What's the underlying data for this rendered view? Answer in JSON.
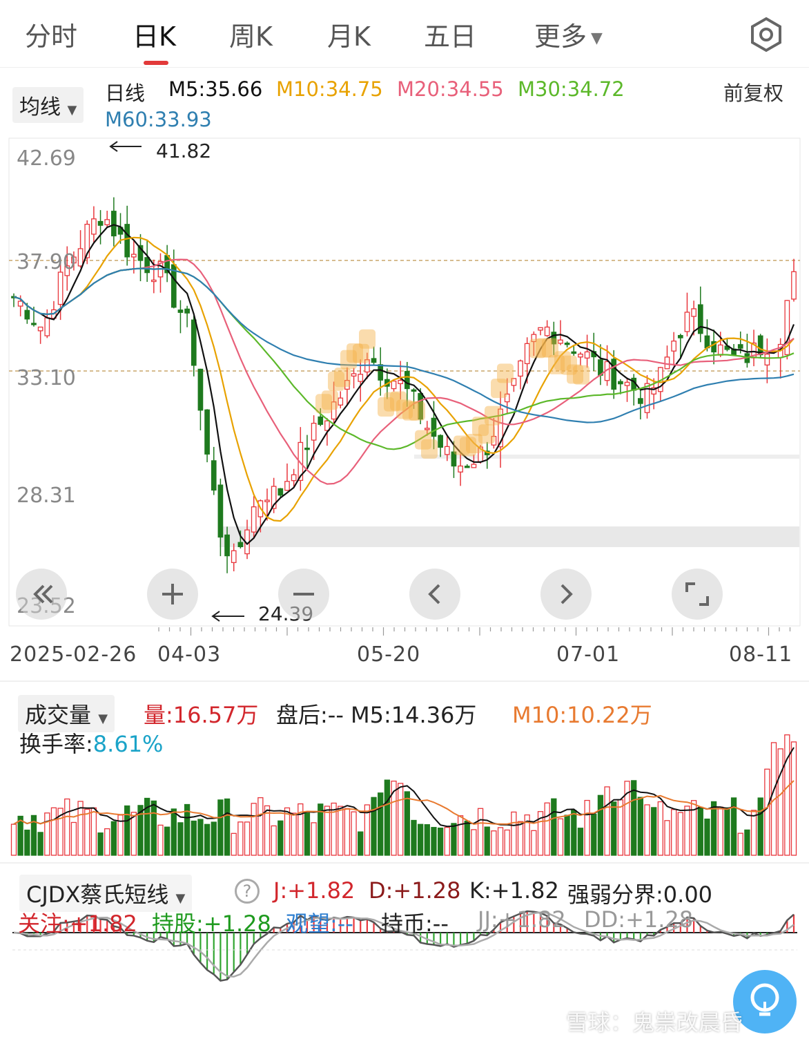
{
  "tabs": [
    {
      "label": "分时"
    },
    {
      "label": "日K"
    },
    {
      "label": "周K"
    },
    {
      "label": "月K"
    },
    {
      "label": "五日"
    },
    {
      "label": "更多"
    }
  ],
  "active_tab": "日K",
  "main_legend": {
    "selector": "均线",
    "period": "日线",
    "m5": "M5:35.66",
    "m10": "M10:34.75",
    "m20": "M20:34.55",
    "m30": "M30:34.72",
    "m60": "M60:33.93",
    "adjust": "前复权"
  },
  "colors": {
    "m5": "#111111",
    "m10": "#e8a200",
    "m20": "#e8607a",
    "m30": "#5cb82a",
    "m60": "#2f7fb0",
    "up": "#e8363c",
    "down": "#1e7a1e",
    "jvalue": "#d2262c"
  },
  "price_axis": [
    "42.69",
    "37.90",
    "33.10",
    "28.31",
    "23.52"
  ],
  "high_label": "41.82",
  "low_label": "24.39",
  "dates": [
    "2025-02-26",
    "04-03",
    "05-20",
    "07-01",
    "08-11"
  ],
  "volume_legend": {
    "selector": "成交量",
    "vol": "量:16.57万",
    "after": "盘后:-- M5:14.36万",
    "m10": "M10:10.22万",
    "turnover_label": "换手率:",
    "turnover_value": "8.61%"
  },
  "cjdx_legend": {
    "selector": "CJDX蔡氏短线",
    "j": "J:+1.82",
    "d": "D:+1.28",
    "k": "K:+1.82",
    "strength": "强弱分界:0.00",
    "watch": "关注:+1.82",
    "hold": "持股:+1.28",
    "observe": "观望:--",
    "coin": "持币:--",
    "jj": "JJ:+1.82",
    "dd": "DD:+1.28"
  },
  "watermark": "雪球：鬼祟改晨昏",
  "chart_data": {
    "type": "candlestick",
    "title": "",
    "price_range": [
      23.52,
      42.69
    ],
    "dashed_levels": [
      37.9,
      33.1
    ],
    "high": 41.82,
    "low": 24.39,
    "moving_averages": {
      "M5": 35.66,
      "M10": 34.75,
      "M20": 34.55,
      "M30": 34.72,
      "M60": 33.93
    },
    "closes_sampled": [
      36.8,
      36.2,
      35.4,
      37.2,
      38.5,
      39.6,
      40.4,
      39.5,
      38.6,
      38.2,
      37.8,
      36.6,
      35.3,
      30.5,
      26.8,
      25.3,
      27.4,
      28.5,
      28.3,
      29.6,
      30.6,
      31.5,
      32.4,
      33.2,
      34.4,
      33.6,
      33.2,
      32.5,
      31.3,
      30.4,
      29.5,
      29.8,
      30.2,
      31.6,
      32.8,
      34.6,
      35.5,
      35.2,
      34.7,
      34.2,
      33.6,
      33.3,
      32.9,
      32.5,
      33.4,
      35.2,
      36.0,
      35.2,
      34.5,
      34.1,
      34.3,
      34.8,
      35.0,
      37.9
    ],
    "volume_scale": "万",
    "volume_latest": 16.57,
    "turnover_percent": 8.61
  }
}
